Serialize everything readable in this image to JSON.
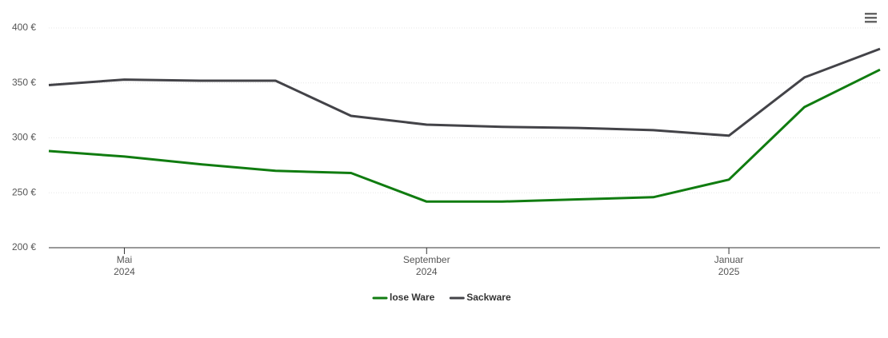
{
  "chart_data": {
    "type": "line",
    "x": [
      "2024-04",
      "2024-05",
      "2024-06",
      "2024-07",
      "2024-08",
      "2024-09",
      "2024-10",
      "2024-11",
      "2024-12",
      "2025-01",
      "2025-02",
      "2025-03"
    ],
    "xlim": [
      "2024-04",
      "2025-03"
    ],
    "xticks": [
      {
        "value": "2024-05",
        "label": "Mai 2024"
      },
      {
        "value": "2024-09",
        "label": "September 2024"
      },
      {
        "value": "2025-01",
        "label": "Januar 2025"
      }
    ],
    "ylim": [
      200,
      400
    ],
    "yticks": [
      {
        "value": 200,
        "label": "200 €"
      },
      {
        "value": 250,
        "label": "250 €"
      },
      {
        "value": 300,
        "label": "300 €"
      },
      {
        "value": 350,
        "label": "350 €"
      },
      {
        "value": 400,
        "label": "400 €"
      }
    ],
    "grid": true,
    "legend": "bottom",
    "series": [
      {
        "name": "lose Ware",
        "color": "#107c10",
        "values": [
          288,
          283,
          276,
          270,
          268,
          242,
          242,
          244,
          246,
          262,
          328,
          362
        ]
      },
      {
        "name": "Sackware",
        "color": "#434348",
        "values": [
          348,
          353,
          352,
          352,
          320,
          312,
          310,
          309,
          307,
          302,
          355,
          381
        ]
      }
    ]
  }
}
